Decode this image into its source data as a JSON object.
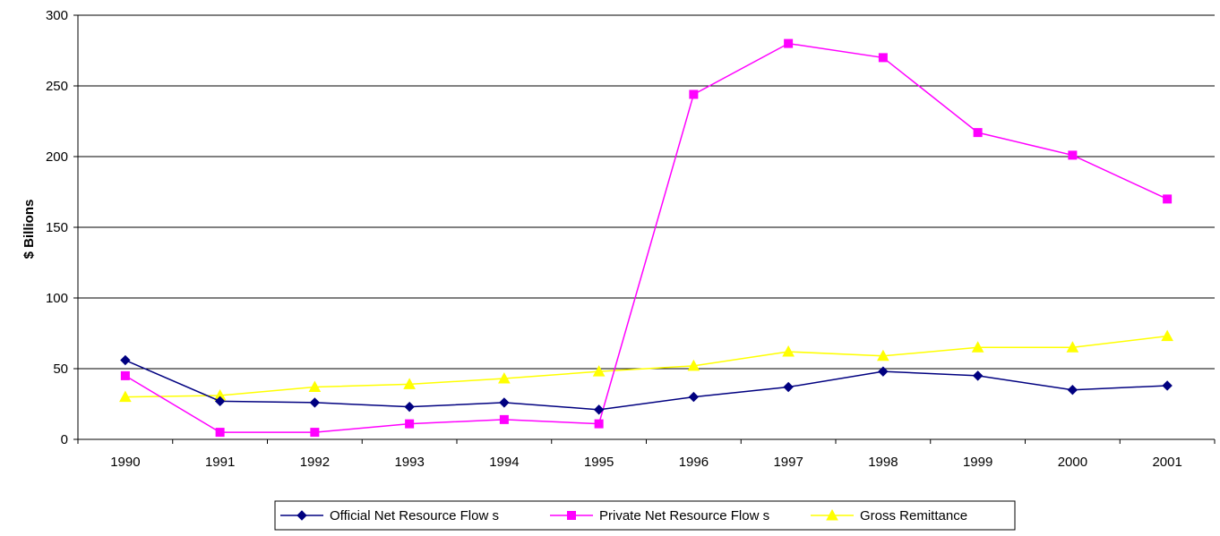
{
  "chart_data": {
    "type": "line",
    "title": "",
    "xlabel": "",
    "ylabel": "$ Billions",
    "categories": [
      "1990",
      "1991",
      "1992",
      "1993",
      "1994",
      "1995",
      "1996",
      "1997",
      "1998",
      "1999",
      "2000",
      "2001"
    ],
    "ylim": [
      0,
      300
    ],
    "yticks": [
      0,
      50,
      100,
      150,
      200,
      250,
      300
    ],
    "grid": "horizontal",
    "legend_position": "bottom",
    "series": [
      {
        "name": "Official Net Resource Flow s",
        "color": "#000080",
        "marker": "diamond",
        "values": [
          56,
          27,
          26,
          23,
          26,
          21,
          30,
          37,
          48,
          45,
          35,
          38
        ]
      },
      {
        "name": "Private Net Resource Flow s",
        "color": "#FF00FF",
        "marker": "square",
        "values": [
          45,
          5,
          5,
          11,
          14,
          11,
          244,
          280,
          270,
          217,
          201,
          170
        ]
      },
      {
        "name": "Gross Remittance",
        "color": "#FFFF00",
        "marker": "triangle",
        "values": [
          30,
          31,
          37,
          39,
          43,
          48,
          52,
          62,
          59,
          65,
          65,
          73
        ]
      }
    ]
  }
}
